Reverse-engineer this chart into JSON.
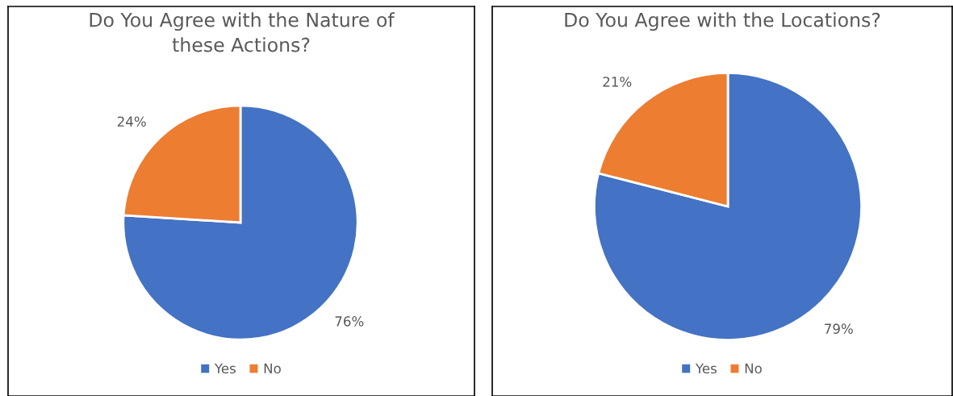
{
  "chart_data": [
    {
      "type": "pie",
      "title": "Do You Agree with the Nature of\nthese Actions?",
      "categories": [
        "Yes",
        "No"
      ],
      "values": [
        76,
        24
      ],
      "colors": [
        "#4472c4",
        "#ed7d31"
      ],
      "value_labels": [
        "76%",
        "24%"
      ],
      "legend": "bottom"
    },
    {
      "type": "pie",
      "title": "Do You Agree with the Locations?",
      "categories": [
        "Yes",
        "No"
      ],
      "values": [
        79,
        21
      ],
      "colors": [
        "#4472c4",
        "#ed7d31"
      ],
      "value_labels": [
        "79%",
        "21%"
      ],
      "legend": "bottom"
    }
  ]
}
